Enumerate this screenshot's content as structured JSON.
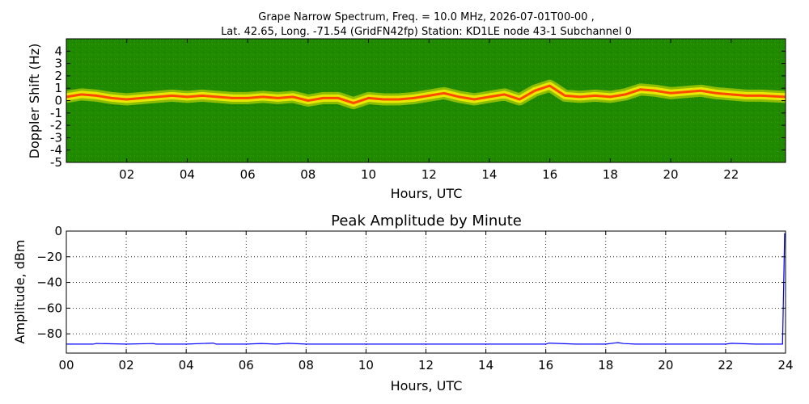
{
  "figure": {
    "title_line1": "Grape Narrow Spectrum, Freq. = 10.0 MHz, 2026-07-01T00-00 ,",
    "title_line2": "Lat.  42.65, Long. -71.54 (GridFN42fp) Station: KD1LE node 43-1 Subchannel 0"
  },
  "chart_data": [
    {
      "type": "heatmap",
      "title": "",
      "xlabel": "Hours, UTC",
      "ylabel": "Doppler Shift (Hz)",
      "xlim": [
        0,
        23.8
      ],
      "ylim": [
        -5,
        5
      ],
      "xticks": [
        "02",
        "04",
        "06",
        "08",
        "10",
        "12",
        "14",
        "16",
        "18",
        "20",
        "22"
      ],
      "xtick_values": [
        2,
        4,
        6,
        8,
        10,
        12,
        14,
        16,
        18,
        20,
        22
      ],
      "yticks": [
        "4",
        "3",
        "2",
        "1",
        "0",
        "-1",
        "-2",
        "-3",
        "-4",
        "-5"
      ],
      "ytick_values": [
        4,
        3,
        2,
        1,
        0,
        -1,
        -2,
        -3,
        -4,
        -5
      ],
      "colors": {
        "background": "#1f8a00",
        "band_edge": "#e8e800",
        "band_core": "#ff4a00"
      },
      "trace_hours": [
        0,
        0.5,
        1,
        1.5,
        2,
        2.5,
        3,
        3.5,
        4,
        4.5,
        5,
        5.5,
        6,
        6.5,
        7,
        7.5,
        8,
        8.5,
        9,
        9.5,
        10,
        10.5,
        11,
        11.5,
        12,
        12.5,
        13,
        13.5,
        14,
        14.5,
        15,
        15.5,
        16,
        16.5,
        17,
        17.5,
        18,
        18.5,
        19,
        19.5,
        20,
        20.5,
        21,
        21.5,
        22,
        22.5,
        23,
        23.8
      ],
      "trace_hz": [
        0.3,
        0.5,
        0.4,
        0.2,
        0.1,
        0.2,
        0.3,
        0.4,
        0.3,
        0.4,
        0.3,
        0.2,
        0.2,
        0.3,
        0.2,
        0.3,
        0.0,
        0.2,
        0.2,
        -0.2,
        0.2,
        0.1,
        0.1,
        0.2,
        0.4,
        0.6,
        0.3,
        0.1,
        0.3,
        0.5,
        0.1,
        0.8,
        1.2,
        0.4,
        0.3,
        0.4,
        0.3,
        0.5,
        0.9,
        0.8,
        0.6,
        0.7,
        0.8,
        0.6,
        0.5,
        0.4,
        0.4,
        0.3
      ]
    },
    {
      "type": "line",
      "title": "Peak Amplitude by Minute",
      "xlabel": "Hours, UTC",
      "ylabel": "Amplitude, dBm",
      "xlim": [
        0,
        24
      ],
      "ylim": [
        -95,
        0
      ],
      "grid": true,
      "xticks": [
        "00",
        "02",
        "04",
        "06",
        "08",
        "10",
        "12",
        "14",
        "16",
        "18",
        "20",
        "22",
        "24"
      ],
      "xtick_values": [
        0,
        2,
        4,
        6,
        8,
        10,
        12,
        14,
        16,
        18,
        20,
        22,
        24
      ],
      "yticks": [
        "0",
        "−20",
        "−40",
        "−60",
        "−80"
      ],
      "ytick_values": [
        0,
        -20,
        -40,
        -60,
        -80
      ],
      "color": "#0000ff",
      "series": [
        {
          "x": [
            0,
            0.9,
            1,
            2,
            2.9,
            3,
            4,
            4.9,
            5,
            6,
            6.5,
            7,
            7.4,
            8,
            9,
            10,
            11,
            12,
            13,
            14,
            15,
            16,
            16.1,
            17,
            18,
            18.4,
            18.6,
            19,
            20,
            21,
            22,
            22.2,
            23,
            23.9,
            23.97,
            24
          ],
          "y": [
            -88,
            -88,
            -87.5,
            -88,
            -87.6,
            -88,
            -88,
            -87.2,
            -88,
            -88,
            -87.5,
            -88,
            -87.4,
            -88,
            -88,
            -88,
            -88,
            -88,
            -88,
            -88,
            -88,
            -88,
            -87.2,
            -88,
            -88,
            -86.8,
            -87.6,
            -88,
            -88,
            -88,
            -88,
            -87.4,
            -88,
            -88,
            -2,
            -2
          ]
        }
      ]
    }
  ]
}
